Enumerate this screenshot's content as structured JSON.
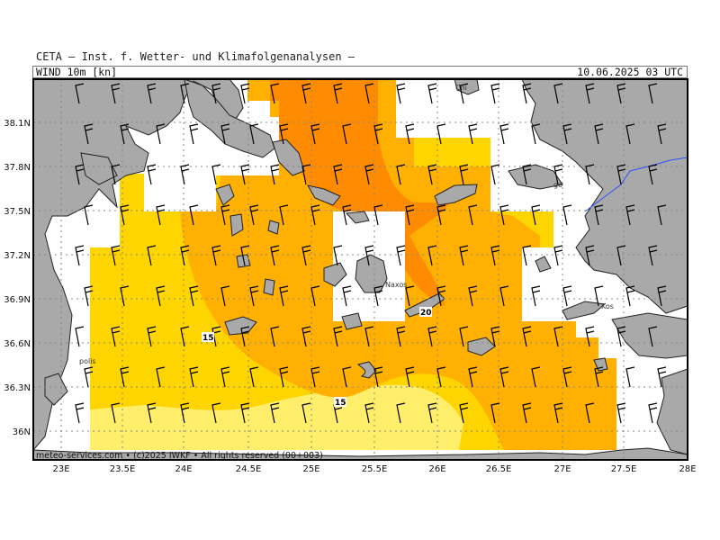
{
  "header": {
    "title": "CETA — Inst. f. Wetter- und Klimafolgenanalysen —",
    "variable": "WIND 10m [kn]",
    "datetime": "10.06.2025 03 UTC"
  },
  "footer": {
    "copyright": "meteo-services.com • (c)2025 IWKF • All rights reserved (00+003)"
  },
  "axes": {
    "lon_ticks": [
      "23E",
      "23.5E",
      "24E",
      "24.5E",
      "25E",
      "25.5E",
      "26E",
      "26.5E",
      "27E",
      "27.5E",
      "28E"
    ],
    "lat_ticks": [
      "38.1N",
      "37.8N",
      "37.5N",
      "37.2N",
      "36.9N",
      "36.6N",
      "36.3N",
      "36N"
    ]
  },
  "place_labels": [
    {
      "name": "Naxos"
    },
    {
      "name": "Chi"
    },
    {
      "name": "Kos"
    },
    {
      "name": "polis"
    },
    {
      "name": "go"
    }
  ],
  "contour_labels": [
    "15",
    "20",
    "15"
  ],
  "legend_colors": {
    "land": "#a9a9a9",
    "wind_10_15": "#ffee6a",
    "wind_15_20": "#ffd500",
    "wind_20_25": "#ffb000",
    "wind_25_30": "#ff8c00",
    "border": "#3050ff"
  }
}
